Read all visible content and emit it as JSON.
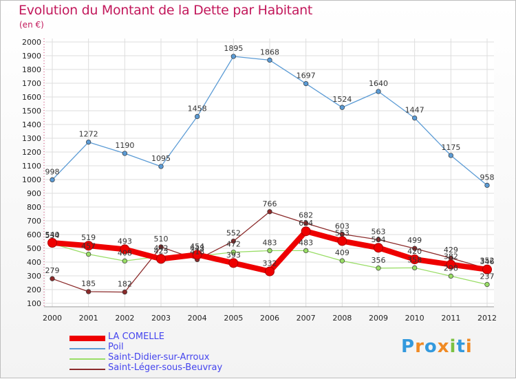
{
  "title": "Evolution du Montant de la Dette par Habitant",
  "subtitle": "(en €)",
  "logo": {
    "text": "Proxiti",
    "colors": [
      "#3399dd",
      "#f08a24",
      "#3399dd",
      "#f08a24",
      "#7bc142",
      "#3399dd",
      "#f08a24"
    ]
  },
  "chart_data": {
    "type": "line",
    "title": "Evolution du Montant de la Dette par Habitant",
    "subtitle": "(en €)",
    "x": [
      "2000",
      "2001",
      "2002",
      "2003",
      "2004",
      "2005",
      "2006",
      "2007",
      "2008",
      "2009",
      "2010",
      "2011",
      "2012"
    ],
    "ylim": [
      100,
      2000
    ],
    "yticks": [
      "100",
      "200",
      "300",
      "400",
      "500",
      "600",
      "700",
      "800",
      "900",
      "1000",
      "1100",
      "1200",
      "1300",
      "1400",
      "1500",
      "1600",
      "1700",
      "1800",
      "1900",
      "2000"
    ],
    "grid": true,
    "legend_position": "bottom-left",
    "series": [
      {
        "name": "LA COMELLE",
        "color": "#ee0000",
        "values": [
          540,
          519,
          493,
          423,
          454,
          393,
          332,
          624,
          553,
          504,
          420,
          382,
          346
        ]
      },
      {
        "name": "Poil",
        "color": "#5b9bd5",
        "values": [
          998,
          1272,
          1190,
          1095,
          1458,
          1895,
          1868,
          1697,
          1524,
          1640,
          1447,
          1175,
          958
        ]
      },
      {
        "name": "Saint-Didier-sur-Arroux",
        "color": "#99dd66",
        "values": [
          534,
          457,
          408,
          442,
          443,
          472,
          483,
          483,
          409,
          356,
          358,
          298,
          237
        ]
      },
      {
        "name": "Saint-Léger-sous-Beuvray",
        "color": "#8b2a2a",
        "values": [
          279,
          185,
          182,
          510,
          418,
          552,
          766,
          682,
          603,
          563,
          499,
          429,
          352
        ]
      }
    ]
  }
}
